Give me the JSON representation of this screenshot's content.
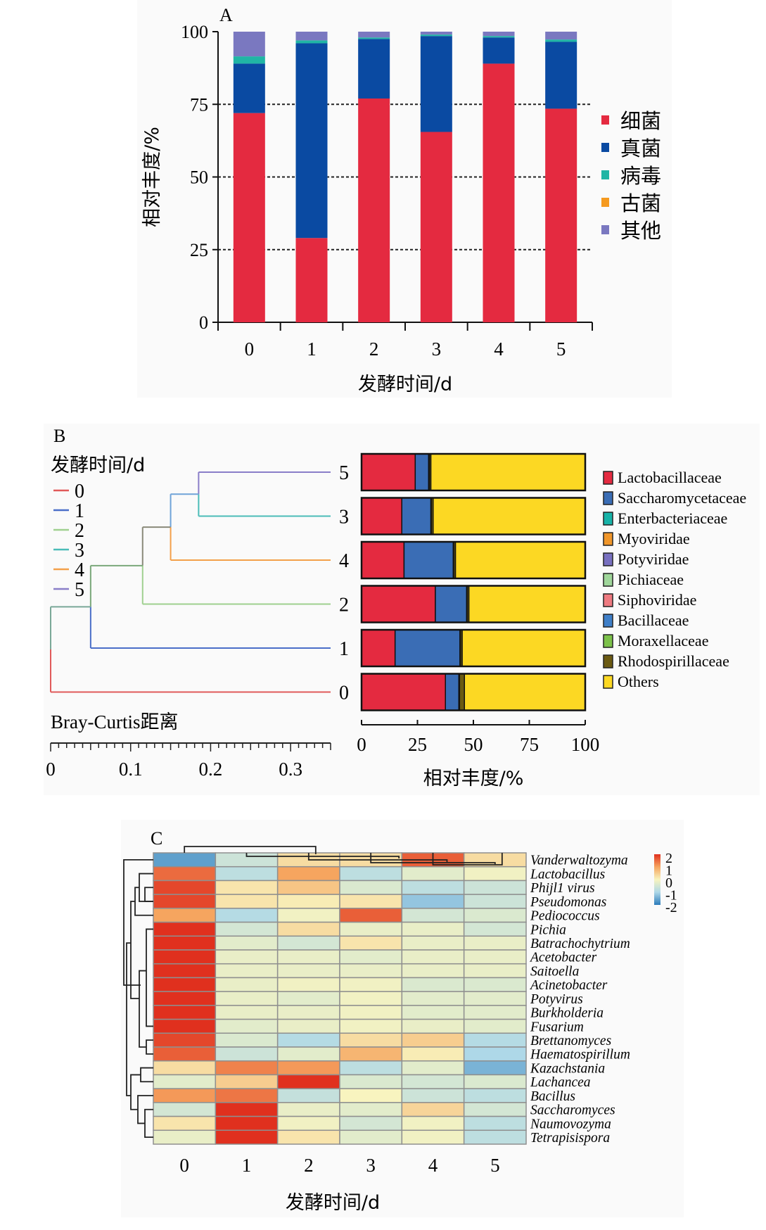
{
  "chart_data": [
    {
      "panel": "A",
      "type": "bar",
      "stacked": true,
      "panel_label": "A",
      "title": "",
      "xlabel": "发酵时间/d",
      "ylabel": "相对丰度/%",
      "ylim": [
        0,
        100
      ],
      "yticks": [
        0,
        25,
        50,
        75,
        100
      ],
      "grid": "dashed at 25, 50, 75",
      "categories": [
        "0",
        "1",
        "2",
        "3",
        "4",
        "5"
      ],
      "legend_position": "right",
      "series": [
        {
          "name": "细菌",
          "color": "#e42a40",
          "values": [
            72,
            29,
            77,
            65.5,
            89,
            73.5
          ]
        },
        {
          "name": "真菌",
          "color": "#0a4aa2",
          "values": [
            17,
            67,
            20.5,
            33,
            9,
            23
          ]
        },
        {
          "name": "病毒",
          "color": "#20b5a5",
          "values": [
            2.5,
            1,
            0.5,
            0.5,
            0.5,
            0.8
          ]
        },
        {
          "name": "古菌",
          "color": "#f59a1f",
          "values": [
            0,
            0,
            0,
            0,
            0,
            0
          ]
        },
        {
          "name": "其他",
          "color": "#7a78c0",
          "values": [
            8.5,
            3,
            2,
            1,
            1.5,
            2.7
          ]
        }
      ]
    },
    {
      "panel": "B",
      "type": "bar",
      "orientation": "horizontal",
      "stacked": true,
      "panel_label": "B",
      "dendrogram_title": "发酵时间/d",
      "dendrogram_xlabel": "Bray-Curtis距离",
      "dendrogram_ticks": [
        "0",
        "0.1",
        "0.2",
        "0.3"
      ],
      "dendrogram_xlim": [
        0,
        0.35
      ],
      "dendrogram_legend": [
        {
          "label": "0",
          "color": "#e05a5a"
        },
        {
          "label": "1",
          "color": "#4a6ec8"
        },
        {
          "label": "2",
          "color": "#9fd08f"
        },
        {
          "label": "3",
          "color": "#4bbcb8"
        },
        {
          "label": "4",
          "color": "#f3a04a"
        },
        {
          "label": "5",
          "color": "#8a7ec8"
        }
      ],
      "dendrogram_merges": [
        {
          "a": "5",
          "b": "3",
          "height": 0.185
        },
        {
          "a": "5|3",
          "b": "4",
          "height": 0.15
        },
        {
          "a": "5|3|4",
          "b": "2",
          "height": 0.115
        },
        {
          "a": "5|3|4|2",
          "b": "1",
          "height": 0.05
        },
        {
          "a": "5|3|4|2|1",
          "b": "0",
          "height": 0.0
        }
      ],
      "xlabel": "相对丰度/%",
      "xlim": [
        0,
        100
      ],
      "xticks": [
        0,
        25,
        50,
        75,
        100
      ],
      "categories": [
        "5",
        "3",
        "4",
        "2",
        "1",
        "0"
      ],
      "legend_position": "right",
      "series": [
        {
          "name": "Lactobacillaceae",
          "color": "#e42a40",
          "values": [
            24,
            18,
            19,
            33,
            15,
            37.5
          ]
        },
        {
          "name": "Saccharomycetaceae",
          "color": "#3a6db5",
          "values": [
            6,
            13,
            22,
            14,
            29,
            6
          ]
        },
        {
          "name": "Enterbacteriaceae",
          "color": "#17b3a8",
          "values": [
            0.3,
            0.2,
            0.2,
            0.2,
            0.2,
            0.3
          ]
        },
        {
          "name": "Myoviridae",
          "color": "#f0962a",
          "values": [
            0,
            0,
            0,
            0,
            0,
            0
          ]
        },
        {
          "name": "Potyviridae",
          "color": "#7870c0",
          "values": [
            0,
            0,
            0,
            0,
            0,
            0
          ]
        },
        {
          "name": "Pichiaceae",
          "color": "#9fd69a",
          "values": [
            0,
            0,
            0,
            0,
            0,
            0
          ]
        },
        {
          "name": "Siphoviridae",
          "color": "#ee7a80",
          "values": [
            0,
            0,
            0,
            0,
            0,
            0
          ]
        },
        {
          "name": "Bacillaceae",
          "color": "#3f7fc8",
          "values": [
            0,
            0,
            0,
            0,
            0,
            0
          ]
        },
        {
          "name": "Moraxellaceae",
          "color": "#7cc14a",
          "values": [
            0,
            0,
            0,
            0,
            0,
            0
          ]
        },
        {
          "name": "Rhodospirillaceae",
          "color": "#6b5a12",
          "values": [
            0.7,
            0.8,
            0.8,
            0.8,
            0.8,
            2.2
          ]
        },
        {
          "name": "Others",
          "color": "#fcd823",
          "values": [
            69,
            68,
            58,
            52,
            55,
            54
          ]
        }
      ]
    },
    {
      "panel": "C",
      "type": "heatmap",
      "panel_label": "C",
      "xlabel": "发酵时间/d",
      "columns": [
        "0",
        "1",
        "2",
        "3",
        "4",
        "5"
      ],
      "rows": [
        "Vanderwaltozyma",
        "Lactobacillus",
        "Phijl1 virus",
        "Pseudomonas",
        "Pediococcus",
        "Pichia",
        "Batrachochytrium",
        "Acetobacter",
        "Saitoella",
        "Acinetobacter",
        "Potyvirus",
        "Burkholderia",
        "Fusarium",
        "Brettanomyces",
        "Haematospirillum",
        "Kazachstania",
        "Lachancea",
        "Bacillus",
        "Saccharomyces",
        "Naumovozyma",
        "Tetrapisispora"
      ],
      "values": [
        [
          -1.6,
          -0.6,
          0.3,
          0.3,
          1.6,
          0.3
        ],
        [
          1.5,
          -0.8,
          1.0,
          -0.8,
          -0.3,
          -0.1
        ],
        [
          1.8,
          0.2,
          0.6,
          -0.4,
          -0.8,
          -0.6
        ],
        [
          1.8,
          0.2,
          0.1,
          0.2,
          -1.2,
          -0.6
        ],
        [
          1.0,
          -0.9,
          -0.1,
          1.6,
          -0.5,
          -0.4
        ],
        [
          2.0,
          -0.5,
          0.3,
          -0.2,
          -0.2,
          -0.5
        ],
        [
          2.0,
          -0.3,
          -0.5,
          0.2,
          -0.2,
          -0.2
        ],
        [
          2.0,
          -0.2,
          -0.2,
          -0.3,
          -0.2,
          -0.2
        ],
        [
          2.0,
          -0.2,
          -0.2,
          -0.2,
          -0.2,
          -0.2
        ],
        [
          2.0,
          -0.2,
          -0.1,
          -0.1,
          -0.4,
          -0.4
        ],
        [
          2.0,
          -0.2,
          -0.3,
          -0.1,
          -0.3,
          -0.3
        ],
        [
          2.0,
          -0.2,
          -0.2,
          -0.1,
          -0.3,
          -0.3
        ],
        [
          2.0,
          -0.3,
          -0.2,
          -0.1,
          -0.2,
          -0.3
        ],
        [
          1.8,
          -0.4,
          -0.9,
          0.3,
          0.5,
          -0.9
        ],
        [
          1.6,
          -0.6,
          -0.3,
          0.8,
          0.1,
          -1.0
        ],
        [
          0.3,
          1.3,
          1.1,
          -0.8,
          -0.3,
          -1.4
        ],
        [
          -0.3,
          0.5,
          2.0,
          -0.4,
          -0.5,
          -0.4
        ],
        [
          1.1,
          1.4,
          -0.7,
          0.0,
          -0.6,
          -0.8
        ],
        [
          -0.5,
          2.0,
          -0.2,
          -0.3,
          0.4,
          -0.5
        ],
        [
          0.2,
          2.0,
          -0.1,
          -0.5,
          -0.1,
          -0.8
        ],
        [
          -0.2,
          2.0,
          0.2,
          -0.3,
          -0.1,
          -0.8
        ]
      ],
      "color_scale": {
        "min": -2,
        "max": 2,
        "ticks": [
          "2",
          "1",
          "0",
          "-1",
          "-2"
        ],
        "colors": [
          "#2b7bba",
          "#aed8e8",
          "#f8f4bf",
          "#f6a55f",
          "#e0301e"
        ]
      },
      "row_dendrogram": true,
      "column_dendrogram": true
    }
  ]
}
